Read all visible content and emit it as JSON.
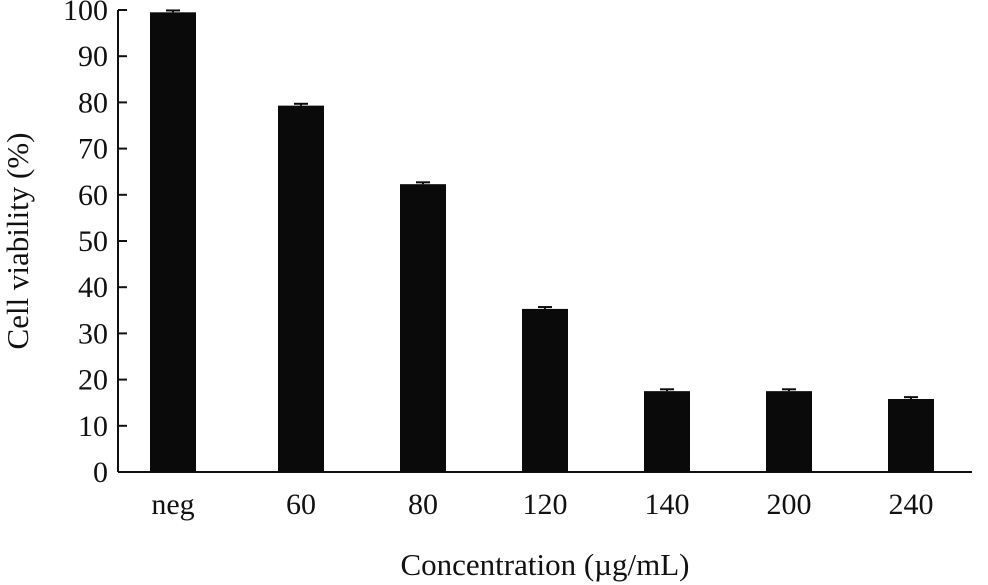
{
  "colors": {
    "bar": "#0a0a0a",
    "axis": "#111111",
    "background": "#ffffff"
  },
  "chart_data": {
    "type": "bar",
    "title": "",
    "xlabel": "Concentration (µg/mL)",
    "ylabel": "Cell viability (%)",
    "categories": [
      "neg",
      "60",
      "80",
      "120",
      "140",
      "200",
      "240"
    ],
    "values": [
      99.5,
      79.3,
      62.3,
      35.3,
      17.5,
      17.5,
      15.8
    ],
    "errors": [
      0.4,
      0.4,
      0.4,
      0.4,
      0.4,
      0.4,
      0.4
    ],
    "ylim": [
      0,
      100
    ],
    "yticks": [
      0,
      10,
      20,
      30,
      40,
      50,
      60,
      70,
      80,
      90,
      100
    ],
    "grid": false,
    "legend": "none"
  }
}
